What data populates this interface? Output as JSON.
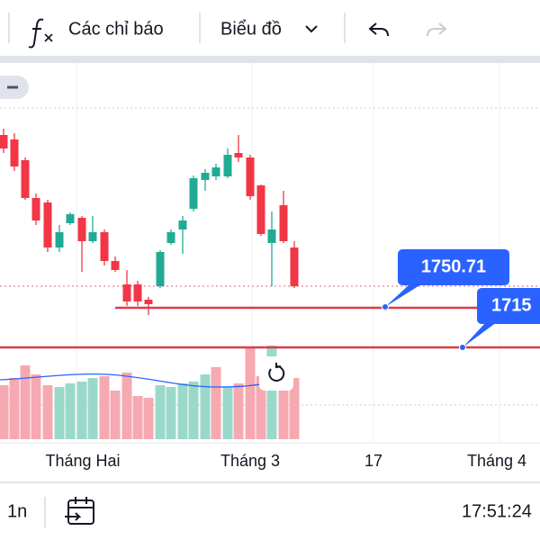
{
  "toolbar": {
    "indicators": "Các chỉ báo",
    "chart_type": "Biểu đồ"
  },
  "price_labels": [
    "1750.71",
    "1715"
  ],
  "x_axis_labels": [
    "Tháng Hai",
    "Tháng 3",
    "17",
    "Tháng 4"
  ],
  "footer": {
    "interval": "1n",
    "time": "17:51:24"
  }
}
